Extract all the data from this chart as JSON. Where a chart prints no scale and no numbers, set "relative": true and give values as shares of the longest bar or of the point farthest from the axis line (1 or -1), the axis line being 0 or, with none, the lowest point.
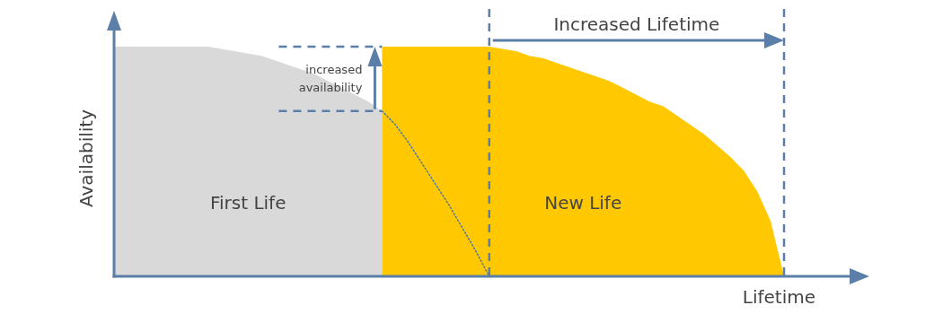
{
  "chart_data": {
    "type": "area",
    "relative": true,
    "xlabel": "Lifetime",
    "ylabel": "Availability",
    "legend": false,
    "grid": false,
    "marker": "none",
    "categories": [
      null,
      null,
      null,
      null,
      null,
      null,
      null,
      null,
      null,
      null,
      null,
      null,
      null,
      null,
      null,
      null,
      null,
      null,
      null,
      null,
      null,
      null,
      null,
      null,
      null,
      null,
      null,
      null,
      null,
      null,
      null,
      null,
      null,
      null,
      null,
      null,
      null,
      null,
      null,
      null,
      null,
      null,
      null,
      null,
      null,
      null,
      null,
      null,
      null,
      null,
      null
    ],
    "series": [
      {
        "name": "First Life",
        "color": "#d9d9d9",
        "values": [
          1,
          1,
          1,
          1,
          1,
          1,
          1,
          1,
          0.99,
          0.98,
          0.97,
          0.96,
          0.94,
          0.92,
          0.9,
          0.88,
          0.85,
          0.82,
          0.79,
          0.76,
          0.72,
          null,
          null,
          null,
          null,
          null,
          null,
          null,
          null,
          null,
          null,
          null,
          null,
          null,
          null,
          null,
          null,
          null,
          null,
          null,
          null,
          null,
          null,
          null,
          null,
          null,
          null,
          null,
          null,
          null,
          null
        ]
      },
      {
        "name": "New Life",
        "color": "#ffc800",
        "values": [
          null,
          null,
          null,
          null,
          null,
          null,
          null,
          null,
          null,
          null,
          null,
          null,
          null,
          null,
          null,
          null,
          null,
          null,
          null,
          null,
          1,
          1,
          1,
          1,
          1,
          1,
          1,
          1,
          1,
          0.99,
          0.98,
          0.96,
          0.95,
          0.93,
          0.91,
          0.89,
          0.87,
          0.85,
          0.82,
          0.79,
          0.76,
          0.74,
          0.7,
          0.66,
          0.62,
          0.57,
          0.52,
          0.46,
          0.37,
          0.24,
          0
        ]
      },
      {
        "type": "line",
        "color": "#4a78a8",
        "line_style": "dotted",
        "values": [
          null,
          null,
          null,
          null,
          null,
          null,
          null,
          null,
          null,
          null,
          null,
          null,
          null,
          null,
          null,
          null,
          null,
          null,
          null,
          null,
          0.72,
          0.66,
          0.58,
          0.49,
          0.4,
          0.31,
          0.21,
          0.11,
          0,
          null,
          null,
          null,
          null,
          null,
          null,
          null,
          null,
          null,
          null,
          null,
          null,
          null,
          null,
          null,
          null,
          null,
          null,
          null,
          null,
          null,
          null
        ]
      }
    ],
    "annotations": [
      "Increased Lifetime",
      "increased availability"
    ]
  }
}
